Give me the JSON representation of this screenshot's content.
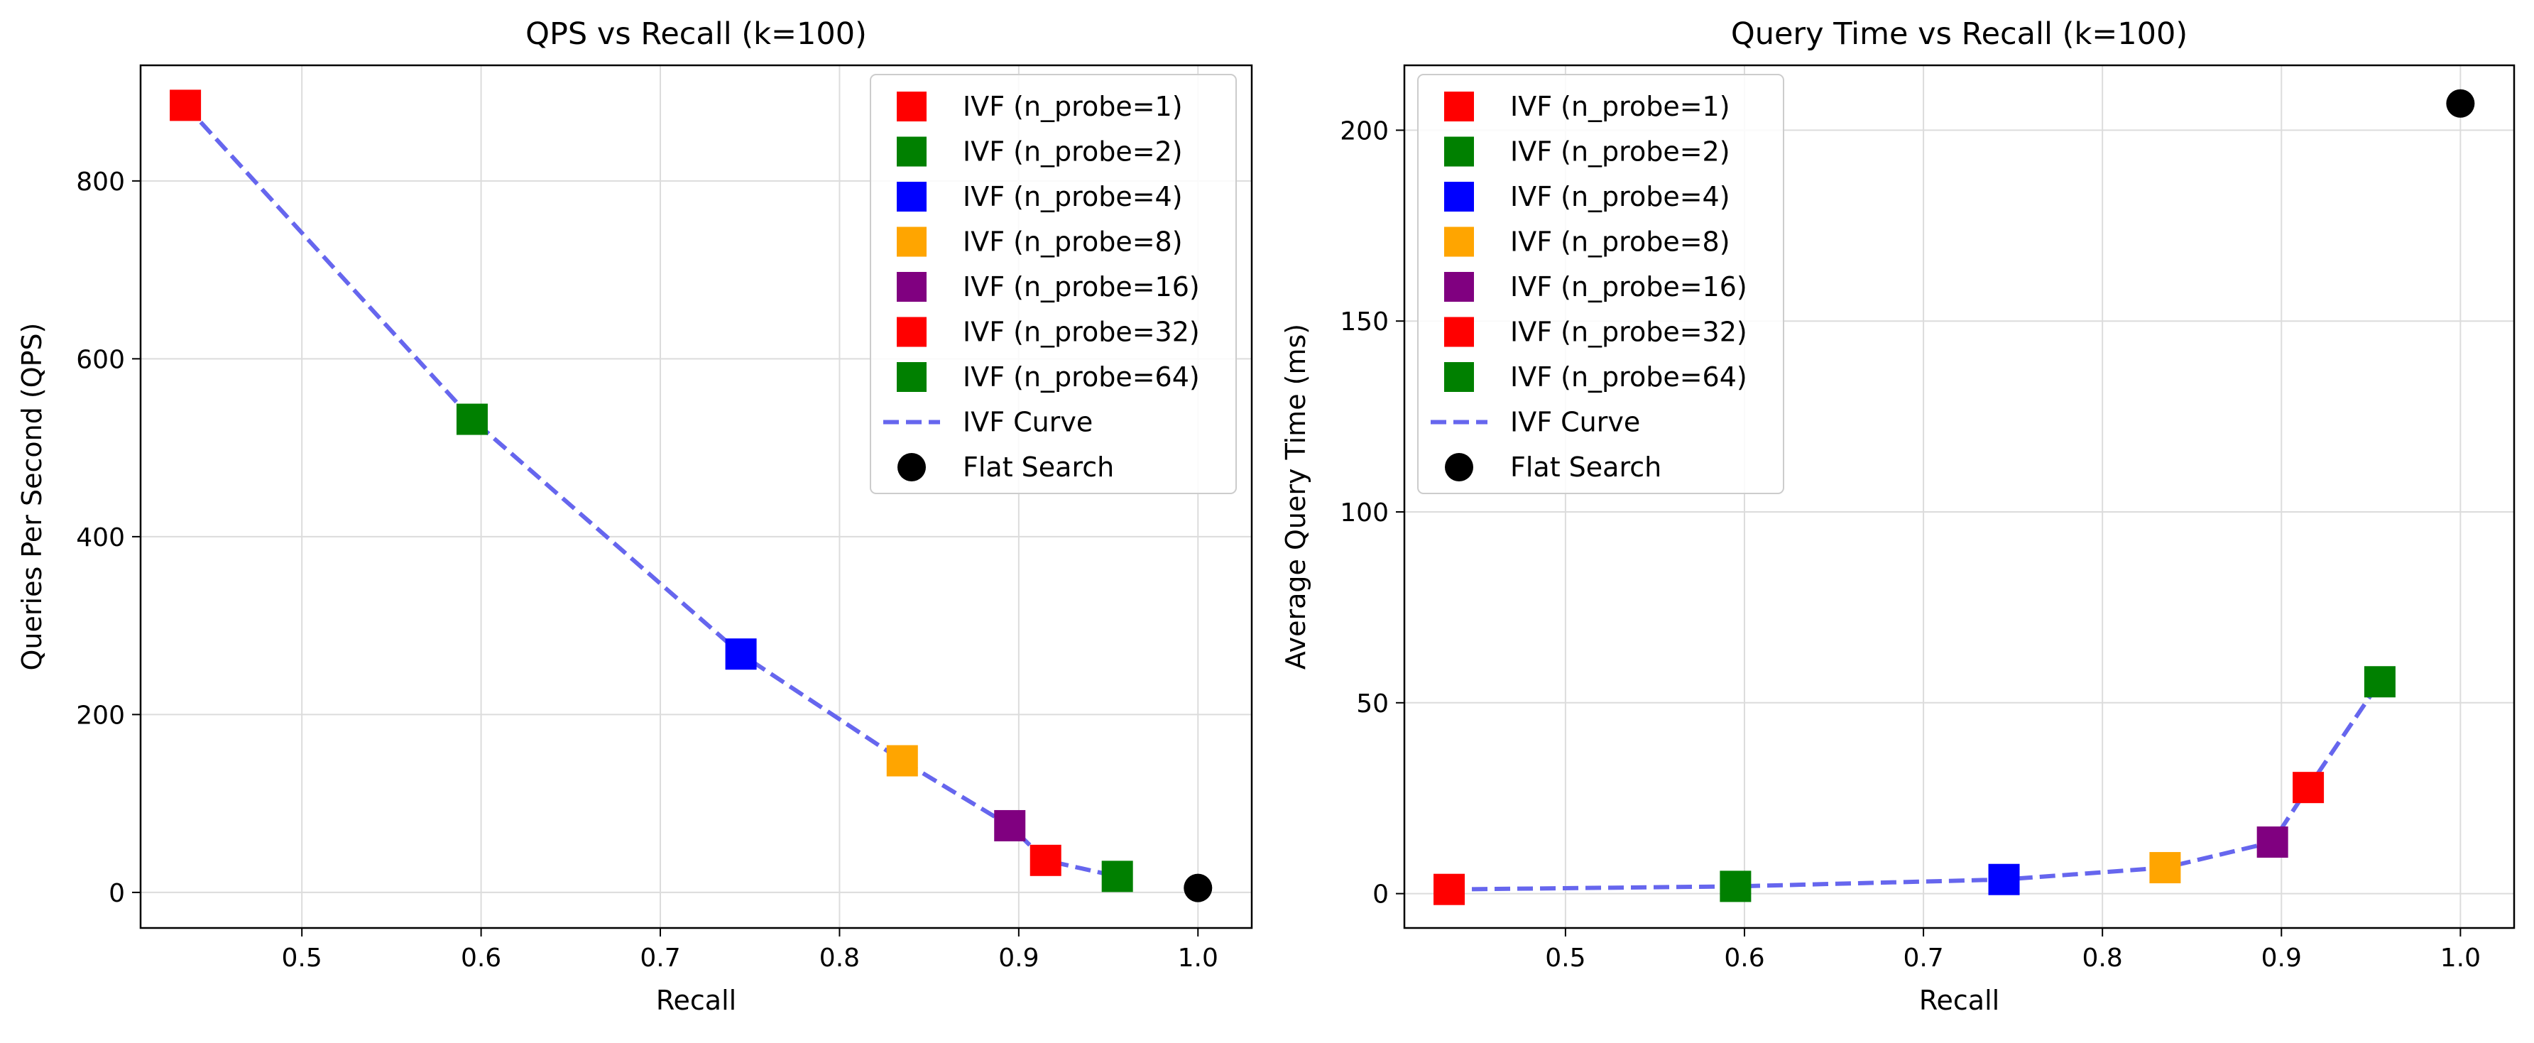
{
  "chart_data": [
    {
      "type": "scatter",
      "title": "QPS vs Recall (k=100)",
      "xlabel": "Recall",
      "ylabel": "Queries Per Second (QPS)",
      "xlim": [
        0.41,
        1.03
      ],
      "ylim": [
        -40,
        930
      ],
      "xticks": [
        0.5,
        0.6,
        0.7,
        0.8,
        0.9,
        1.0
      ],
      "xtick_labels": [
        "0.5",
        "0.6",
        "0.7",
        "0.8",
        "0.9",
        "1.0"
      ],
      "yticks": [
        0,
        200,
        400,
        600,
        800
      ],
      "ytick_labels": [
        "0",
        "200",
        "400",
        "600",
        "800"
      ],
      "grid": true,
      "legend_position": "top-right",
      "series": [
        {
          "name": "IVF (n_probe=1)",
          "marker": "square",
          "color": "#ff0000",
          "x": 0.435,
          "y": 885
        },
        {
          "name": "IVF (n_probe=2)",
          "marker": "square",
          "color": "#008000",
          "x": 0.595,
          "y": 532
        },
        {
          "name": "IVF (n_probe=4)",
          "marker": "square",
          "color": "#0000ff",
          "x": 0.745,
          "y": 268
        },
        {
          "name": "IVF (n_probe=8)",
          "marker": "square",
          "color": "#ffa500",
          "x": 0.835,
          "y": 148
        },
        {
          "name": "IVF (n_probe=16)",
          "marker": "square",
          "color": "#800080",
          "x": 0.895,
          "y": 75
        },
        {
          "name": "IVF (n_probe=32)",
          "marker": "square",
          "color": "#ff0000",
          "x": 0.915,
          "y": 36
        },
        {
          "name": "IVF (n_probe=64)",
          "marker": "square",
          "color": "#008000",
          "x": 0.955,
          "y": 18
        },
        {
          "name": "IVF Curve",
          "marker": "dashed-line",
          "color": "#6666ee",
          "x": [
            0.435,
            0.595,
            0.745,
            0.835,
            0.895,
            0.915,
            0.955
          ],
          "y": [
            885,
            532,
            268,
            148,
            75,
            36,
            18
          ]
        },
        {
          "name": "Flat Search",
          "marker": "circle",
          "color": "#000000",
          "x": 1.0,
          "y": 5
        }
      ]
    },
    {
      "type": "scatter",
      "title": "Query Time vs Recall (k=100)",
      "xlabel": "Recall",
      "ylabel": "Average Query Time (ms)",
      "xlim": [
        0.41,
        1.03
      ],
      "ylim": [
        -9,
        217
      ],
      "xticks": [
        0.5,
        0.6,
        0.7,
        0.8,
        0.9,
        1.0
      ],
      "xtick_labels": [
        "0.5",
        "0.6",
        "0.7",
        "0.8",
        "0.9",
        "1.0"
      ],
      "yticks": [
        0,
        50,
        100,
        150,
        200
      ],
      "ytick_labels": [
        "0",
        "50",
        "100",
        "150",
        "200"
      ],
      "grid": true,
      "legend_position": "top-left",
      "series": [
        {
          "name": "IVF (n_probe=1)",
          "marker": "square",
          "color": "#ff0000",
          "x": 0.435,
          "y": 1.1
        },
        {
          "name": "IVF (n_probe=2)",
          "marker": "square",
          "color": "#008000",
          "x": 0.595,
          "y": 1.9
        },
        {
          "name": "IVF (n_probe=4)",
          "marker": "square",
          "color": "#0000ff",
          "x": 0.745,
          "y": 3.7
        },
        {
          "name": "IVF (n_probe=8)",
          "marker": "square",
          "color": "#ffa500",
          "x": 0.835,
          "y": 6.8
        },
        {
          "name": "IVF (n_probe=16)",
          "marker": "square",
          "color": "#800080",
          "x": 0.895,
          "y": 13.5
        },
        {
          "name": "IVF (n_probe=32)",
          "marker": "square",
          "color": "#ff0000",
          "x": 0.915,
          "y": 27.8
        },
        {
          "name": "IVF (n_probe=64)",
          "marker": "square",
          "color": "#008000",
          "x": 0.955,
          "y": 55.5
        },
        {
          "name": "IVF Curve",
          "marker": "dashed-line",
          "color": "#6666ee",
          "x": [
            0.435,
            0.595,
            0.745,
            0.835,
            0.895,
            0.915,
            0.955
          ],
          "y": [
            1.1,
            1.9,
            3.7,
            6.8,
            13.5,
            27.8,
            55.5
          ]
        },
        {
          "name": "Flat Search",
          "marker": "circle",
          "color": "#000000",
          "x": 1.0,
          "y": 207
        }
      ]
    }
  ]
}
